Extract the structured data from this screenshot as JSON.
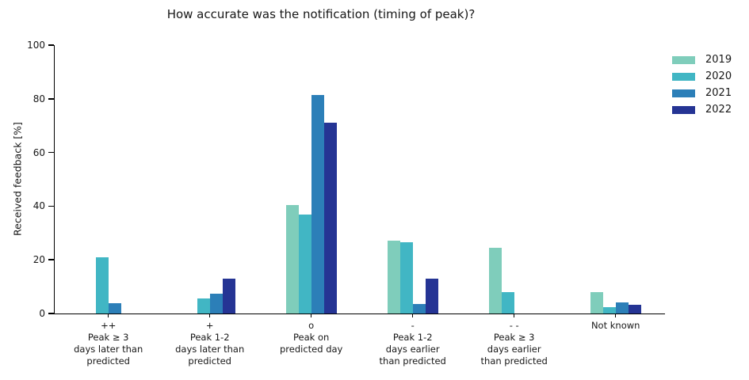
{
  "chart_data": {
    "type": "bar",
    "title": "How accurate was the notification (timing of peak)?",
    "xlabel": "",
    "ylabel": "Received feedback [%]",
    "ylim": [
      0,
      100
    ],
    "yticks": [
      0,
      20,
      40,
      60,
      80,
      100
    ],
    "grid": false,
    "legend_position": "upper-right-outside",
    "categories": [
      "++ Peak ≥ 3 days later than predicted",
      "+ Peak 1-2 days later than predicted",
      "o Peak on predicted day",
      "- Peak 1-2 days earlier than predicted",
      "- - Peak ≥ 3 days earlier than predicted",
      "Not known"
    ],
    "category_label_lines": [
      [
        "++",
        "Peak ≥ 3",
        "days later than",
        "predicted"
      ],
      [
        "+",
        "Peak 1-2",
        "days later than",
        "predicted"
      ],
      [
        "o",
        "Peak on",
        "predicted day"
      ],
      [
        "-",
        "Peak 1-2",
        "days earlier",
        "than predicted"
      ],
      [
        "- -",
        "Peak ≥ 3",
        "days earlier",
        "than predicted"
      ],
      [
        "Not known"
      ]
    ],
    "series": [
      {
        "name": "2019",
        "color": "#7fcdbb",
        "values": [
          0,
          0,
          40.5,
          27,
          24.5,
          8
        ]
      },
      {
        "name": "2020",
        "color": "#41b6c4",
        "values": [
          21,
          5.5,
          37,
          26.5,
          8,
          2.5
        ]
      },
      {
        "name": "2021",
        "color": "#2c7fb8",
        "values": [
          3.7,
          7.5,
          81.5,
          3.5,
          0,
          4
        ]
      },
      {
        "name": "2022",
        "color": "#253494",
        "values": [
          0,
          13,
          71,
          13,
          0,
          3.3
        ]
      }
    ]
  }
}
